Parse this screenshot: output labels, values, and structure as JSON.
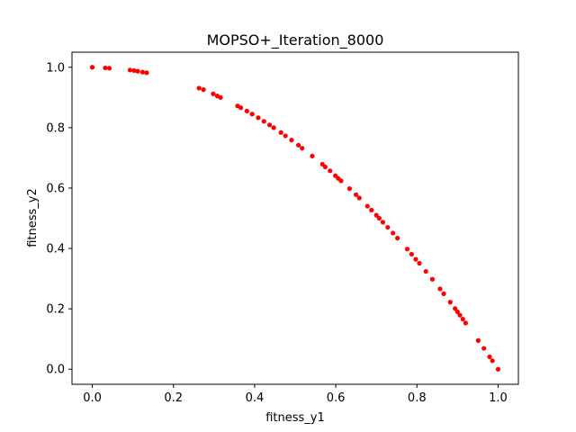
{
  "chart_data": {
    "type": "scatter",
    "title": "MOPSO+_Iteration_8000",
    "xlabel": "fitness_y1",
    "ylabel": "fitness_y2",
    "xlim": [
      -0.05,
      1.05
    ],
    "ylim": [
      -0.05,
      1.05
    ],
    "xticks": [
      0.0,
      0.2,
      0.4,
      0.6,
      0.8,
      1.0
    ],
    "yticks": [
      0.0,
      0.2,
      0.4,
      0.6,
      0.8,
      1.0
    ],
    "xtick_labels": [
      "0.0",
      "0.2",
      "0.4",
      "0.6",
      "0.8",
      "1.0"
    ],
    "ytick_labels": [
      "0.0",
      "0.2",
      "0.4",
      "0.6",
      "0.8",
      "1.0"
    ],
    "grid": false,
    "marker_color": "#ff0000",
    "points": [
      [
        0.0,
        1.0
      ],
      [
        0.032,
        0.998
      ],
      [
        0.042,
        0.997
      ],
      [
        0.093,
        0.991
      ],
      [
        0.103,
        0.989
      ],
      [
        0.112,
        0.987
      ],
      [
        0.124,
        0.984
      ],
      [
        0.134,
        0.982
      ],
      [
        0.263,
        0.931
      ],
      [
        0.274,
        0.926
      ],
      [
        0.298,
        0.912
      ],
      [
        0.308,
        0.905
      ],
      [
        0.316,
        0.9
      ],
      [
        0.358,
        0.872
      ],
      [
        0.366,
        0.866
      ],
      [
        0.381,
        0.855
      ],
      [
        0.394,
        0.845
      ],
      [
        0.409,
        0.833
      ],
      [
        0.423,
        0.821
      ],
      [
        0.437,
        0.809
      ],
      [
        0.447,
        0.8
      ],
      [
        0.465,
        0.784
      ],
      [
        0.476,
        0.773
      ],
      [
        0.491,
        0.759
      ],
      [
        0.508,
        0.742
      ],
      [
        0.517,
        0.732
      ],
      [
        0.542,
        0.706
      ],
      [
        0.567,
        0.679
      ],
      [
        0.574,
        0.67
      ],
      [
        0.586,
        0.657
      ],
      [
        0.599,
        0.641
      ],
      [
        0.606,
        0.632
      ],
      [
        0.613,
        0.624
      ],
      [
        0.634,
        0.598
      ],
      [
        0.65,
        0.578
      ],
      [
        0.658,
        0.567
      ],
      [
        0.678,
        0.54
      ],
      [
        0.688,
        0.527
      ],
      [
        0.7,
        0.51
      ],
      [
        0.707,
        0.5
      ],
      [
        0.716,
        0.487
      ],
      [
        0.728,
        0.47
      ],
      [
        0.741,
        0.451
      ],
      [
        0.752,
        0.434
      ],
      [
        0.776,
        0.398
      ],
      [
        0.787,
        0.381
      ],
      [
        0.797,
        0.364
      ],
      [
        0.806,
        0.351
      ],
      [
        0.822,
        0.324
      ],
      [
        0.838,
        0.298
      ],
      [
        0.857,
        0.266
      ],
      [
        0.866,
        0.25
      ],
      [
        0.882,
        0.222
      ],
      [
        0.894,
        0.201
      ],
      [
        0.9,
        0.19
      ],
      [
        0.906,
        0.179
      ],
      [
        0.913,
        0.166
      ],
      [
        0.92,
        0.153
      ],
      [
        0.951,
        0.095
      ],
      [
        0.965,
        0.069
      ],
      [
        0.979,
        0.041
      ],
      [
        0.986,
        0.028
      ],
      [
        1.0,
        0.0
      ]
    ]
  }
}
